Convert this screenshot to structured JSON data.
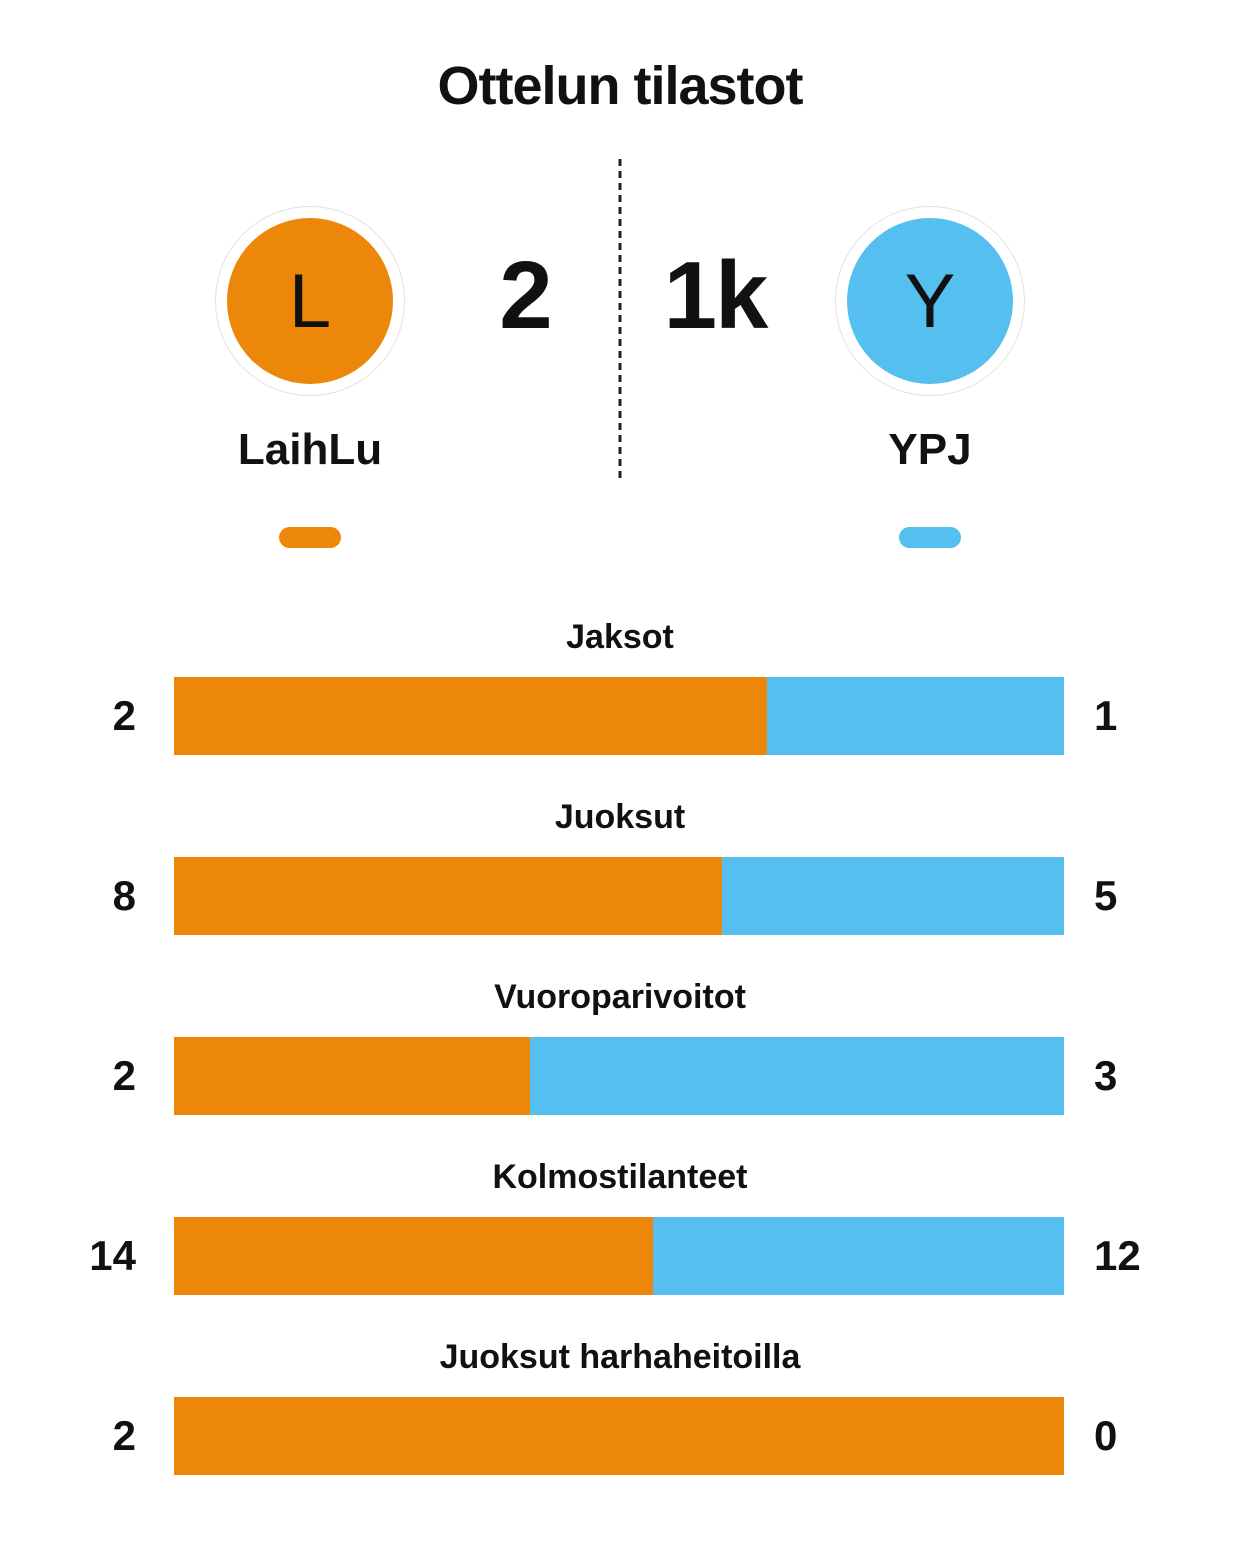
{
  "title": "Ottelun tilastot",
  "colors": {
    "home": "#ED870A",
    "away": "#55BFEF"
  },
  "scoreboard": {
    "home": {
      "initial": "L",
      "name": "LaihLu",
      "score": "2"
    },
    "away": {
      "initial": "Y",
      "name": "YPJ",
      "score": "1k"
    }
  },
  "chart_data": {
    "type": "bar",
    "subtype": "stacked-horizontal-proportional",
    "title": "Ottelun tilastot",
    "categories": [
      "Jaksot",
      "Juoksut",
      "Vuoroparivoitot",
      "Kolmostilanteet",
      "Juoksut harhaheitoilla"
    ],
    "series": [
      {
        "name": "LaihLu",
        "color": "#ED870A",
        "values": [
          2,
          8,
          2,
          14,
          2
        ]
      },
      {
        "name": "YPJ",
        "color": "#55BFEF",
        "values": [
          1,
          5,
          3,
          12,
          0
        ]
      }
    ],
    "legend_position": "top",
    "value_labels": "both-ends",
    "grid": false
  }
}
